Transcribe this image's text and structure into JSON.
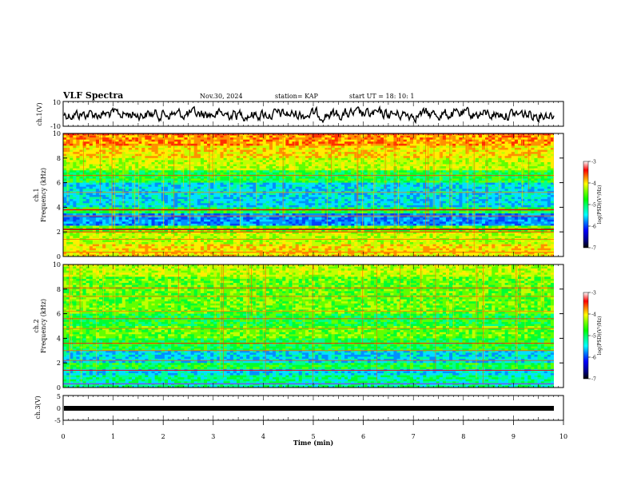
{
  "header": {
    "title": "VLF Spectra",
    "date": "Nov.30, 2024",
    "station": "station= KAP",
    "start": "start  UT =   18: 10: 1"
  },
  "colorbar": {
    "label": "log(PSD)(V²/Hz)",
    "ticks": [
      "-3",
      "-4",
      "-5",
      "-6",
      "-7"
    ],
    "colors": [
      "#000080",
      "#0000ff",
      "#0080ff",
      "#00ffff",
      "#00ff80",
      "#00ff00",
      "#80ff00",
      "#ffff00",
      "#ff8000",
      "#ff0000",
      "#ff8080",
      "#ffffff"
    ]
  },
  "chart_data": [
    {
      "type": "line",
      "ylabel": "ch.1(V)",
      "ylim": [
        -10,
        10
      ],
      "yticks": [
        "10",
        "-10"
      ],
      "xlim": [
        0,
        10
      ],
      "color": "#000000"
    },
    {
      "type": "heatmap",
      "ylabel_top": "ch.1",
      "ylabel": "Frequency  (kHz)",
      "ylim": [
        0,
        10
      ],
      "yticks": [
        "0",
        "2",
        "4",
        "6",
        "8",
        "10"
      ],
      "xlim": [
        0,
        10.0
      ],
      "zlim": [
        -7,
        -3
      ]
    },
    {
      "type": "heatmap",
      "ylabel_top": "ch.2",
      "ylabel": "Frequency  (kHz)",
      "ylim": [
        0,
        10
      ],
      "yticks": [
        "0",
        "2",
        "4",
        "6",
        "8",
        "10"
      ],
      "xlim": [
        0,
        10.0
      ],
      "zlim": [
        -7,
        -3
      ]
    },
    {
      "type": "line",
      "ylabel": "ch.3(V)",
      "ylim": [
        -5,
        5
      ],
      "yticks": [
        "5",
        "0",
        "-5"
      ],
      "xlim": [
        0,
        10
      ],
      "xlabel": "Time  (min)",
      "xticks": [
        "0",
        "1",
        "2",
        "3",
        "4",
        "5",
        "6",
        "7",
        "8",
        "9",
        "10"
      ]
    }
  ]
}
